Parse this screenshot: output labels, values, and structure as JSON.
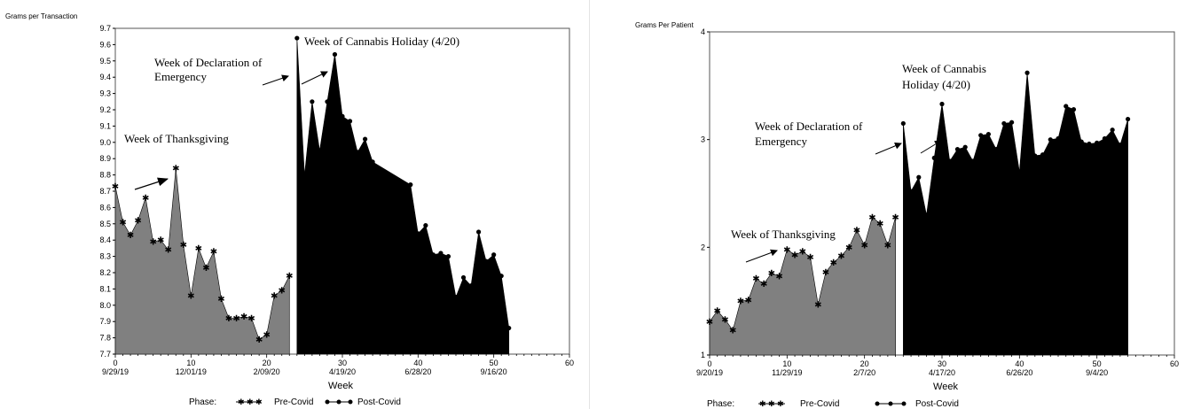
{
  "chart_data": [
    {
      "type": "area",
      "ylabel": "Grams per Transaction",
      "xlabel": "Week",
      "xlim": [
        0,
        60
      ],
      "ylim": [
        7.7,
        9.7
      ],
      "x_ticks": [
        0,
        10,
        20,
        30,
        40,
        50,
        60
      ],
      "y_ticks": [
        "7.7",
        "7.8",
        "7.9",
        "8.0",
        "8.1",
        "8.2",
        "8.3",
        "8.4",
        "8.5",
        "8.6",
        "8.7",
        "8.8",
        "8.9",
        "9.0",
        "9.1",
        "9.2",
        "9.3",
        "9.4",
        "9.5",
        "9.6",
        "9.7"
      ],
      "date_labels": [
        {
          "x": 0,
          "label": "9/29/19"
        },
        {
          "x": 10,
          "label": "12/01/19"
        },
        {
          "x": 20,
          "label": "2/09/20"
        },
        {
          "x": 30,
          "label": "4/19/20"
        },
        {
          "x": 40,
          "label": "6/28/20"
        },
        {
          "x": 50,
          "label": "9/16/20"
        }
      ],
      "legend": {
        "title": "Phase:",
        "pre": "Pre-Covid",
        "post": "Post-Covid",
        "placement": "bottom"
      },
      "series": [
        {
          "name": "Pre-Covid",
          "color": "#808080",
          "marker": "star",
          "x": [
            0,
            1,
            2,
            3,
            4,
            5,
            6,
            7,
            8,
            9,
            10,
            11,
            12,
            13,
            14,
            15,
            16,
            17,
            18,
            19,
            20,
            21,
            22,
            23
          ],
          "y": [
            8.73,
            8.51,
            8.43,
            8.52,
            8.66,
            8.39,
            8.4,
            8.34,
            8.84,
            8.37,
            8.06,
            8.35,
            8.23,
            8.33,
            8.04,
            7.92,
            7.92,
            7.93,
            7.92,
            7.79,
            7.82,
            8.06,
            8.09,
            8.18
          ]
        },
        {
          "name": "Post-Covid",
          "color": "#000000",
          "marker": "dot",
          "x": [
            24,
            25,
            26,
            27,
            28,
            29,
            30,
            31,
            32,
            33,
            34,
            39,
            40,
            41,
            42,
            43,
            44,
            45,
            46,
            47,
            48,
            49,
            50,
            51,
            52
          ],
          "y": [
            9.64,
            8.8,
            9.25,
            8.95,
            9.25,
            9.54,
            9.16,
            9.13,
            8.94,
            9.02,
            8.88,
            8.74,
            8.44,
            8.49,
            8.31,
            8.32,
            8.3,
            8.05,
            8.17,
            8.12,
            8.45,
            8.27,
            8.31,
            8.18,
            7.86
          ]
        }
      ],
      "annotations": [
        {
          "lines": [
            "Week of Cannabis Holiday (4/20)"
          ]
        },
        {
          "lines": [
            "Week of Declaration of",
            "Emergency"
          ]
        },
        {
          "lines": [
            "Week of Thanksgiving"
          ]
        }
      ]
    },
    {
      "type": "area",
      "ylabel": "Grams Per Patient",
      "xlabel": "Week",
      "xlim": [
        0,
        60
      ],
      "ylim": [
        1,
        4
      ],
      "x_ticks": [
        0,
        10,
        20,
        30,
        40,
        50,
        60
      ],
      "y_ticks": [
        "1",
        "2",
        "3",
        "4"
      ],
      "date_labels": [
        {
          "x": 0,
          "label": "9/20/19"
        },
        {
          "x": 10,
          "label": "11/29/19"
        },
        {
          "x": 20,
          "label": "2/7/20"
        },
        {
          "x": 30,
          "label": "4/17/20"
        },
        {
          "x": 40,
          "label": "6/26/20"
        },
        {
          "x": 50,
          "label": "9/4/20"
        }
      ],
      "legend": {
        "title": "Phase:",
        "pre": "Pre-Covid",
        "post": "Post-Covid",
        "placement": "bottom"
      },
      "series": [
        {
          "name": "Pre-Covid",
          "color": "#808080",
          "marker": "star",
          "x": [
            0,
            1,
            2,
            3,
            4,
            5,
            6,
            7,
            8,
            9,
            10,
            11,
            12,
            13,
            14,
            15,
            16,
            17,
            18,
            19,
            20,
            21,
            22,
            23,
            24
          ],
          "y": [
            1.31,
            1.41,
            1.33,
            1.23,
            1.5,
            1.51,
            1.71,
            1.66,
            1.76,
            1.73,
            1.98,
            1.93,
            1.96,
            1.91,
            1.47,
            1.77,
            1.86,
            1.92,
            2.0,
            2.16,
            2.02,
            2.28,
            2.22,
            2.02,
            2.28
          ]
        },
        {
          "name": "Post-Covid",
          "color": "#000000",
          "marker": "dot",
          "x": [
            25,
            26,
            27,
            28,
            29,
            30,
            31,
            32,
            33,
            34,
            35,
            36,
            37,
            38,
            39,
            40,
            41,
            42,
            43,
            44,
            45,
            46,
            47,
            48,
            49,
            50,
            51,
            52,
            53,
            54
          ],
          "y": [
            3.15,
            2.52,
            2.65,
            2.3,
            2.83,
            3.33,
            2.8,
            2.91,
            2.93,
            2.8,
            3.04,
            3.05,
            2.91,
            3.15,
            3.16,
            2.7,
            3.62,
            2.85,
            2.86,
            3.0,
            3.01,
            3.31,
            3.28,
            2.98,
            2.96,
            2.97,
            3.01,
            3.09,
            2.95,
            3.19
          ]
        }
      ],
      "annotations": [
        {
          "lines": [
            "Week of Cannabis",
            "Holiday (4/20)"
          ]
        },
        {
          "lines": [
            "Week of Declaration of",
            "Emergency"
          ]
        },
        {
          "lines": [
            "Week of Thanksgiving"
          ]
        }
      ]
    }
  ]
}
